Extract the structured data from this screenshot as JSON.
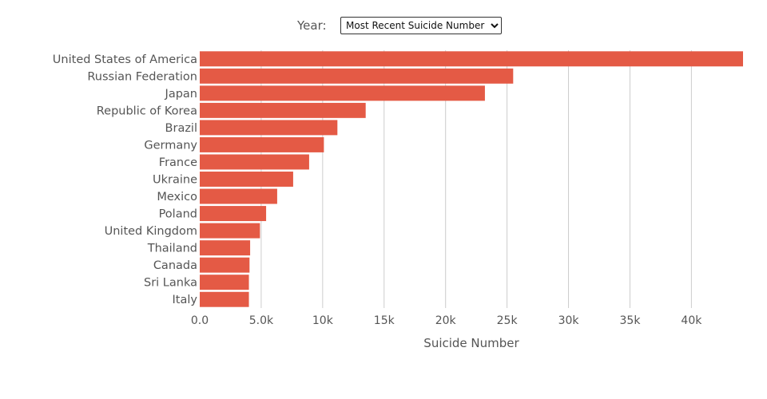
{
  "controls": {
    "year_label": "Year:",
    "year_selected": "Most Recent Suicide Number"
  },
  "chart_data": {
    "type": "bar",
    "orientation": "horizontal",
    "categories": [
      "United States of America",
      "Russian Federation",
      "Japan",
      "Republic of Korea",
      "Brazil",
      "Germany",
      "France",
      "Ukraine",
      "Mexico",
      "Poland",
      "United Kingdom",
      "Thailand",
      "Canada",
      "Sri Lanka",
      "Italy"
    ],
    "values": [
      44200,
      25500,
      23200,
      13500,
      11200,
      10100,
      8900,
      7600,
      6300,
      5400,
      4900,
      4100,
      4050,
      4000,
      4000
    ],
    "xlabel": "Suicide Number",
    "ylabel": "",
    "xlim": [
      0,
      44200
    ],
    "xticks": [
      0,
      5000,
      10000,
      15000,
      20000,
      25000,
      30000,
      35000,
      40000
    ],
    "xtick_labels": [
      "0.0",
      "5.0k",
      "10k",
      "15k",
      "20k",
      "25k",
      "30k",
      "35k",
      "40k"
    ],
    "grid": true,
    "bar_color": "#e45a45",
    "grid_color": "#cccccc"
  }
}
